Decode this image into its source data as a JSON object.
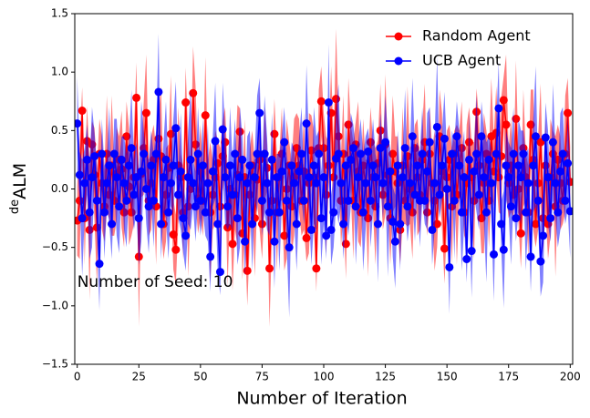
{
  "chart_data": {
    "type": "line",
    "xlabel": "Number of Iteration",
    "ylabel_prefix": "de",
    "ylabel": "ALM",
    "annotation": "Number of Seed: 10",
    "annotation_at": [
      0,
      -0.8
    ],
    "legend": "upper right",
    "xlim": [
      -1,
      201
    ],
    "ylim": [
      -1.5,
      1.5
    ],
    "xticks": [
      0,
      25,
      50,
      75,
      100,
      125,
      150,
      175,
      200
    ],
    "yticks": [
      {
        "value": -1.5,
        "label": "−1.5"
      },
      {
        "value": -1.0,
        "label": "−1.0"
      },
      {
        "value": -0.5,
        "label": "−0.5"
      },
      {
        "value": 0,
        "label": "0.0"
      },
      {
        "value": 0.5,
        "label": "0.5"
      },
      {
        "value": 1.0,
        "label": "1.0"
      },
      {
        "value": 1.5,
        "label": "1.5"
      }
    ],
    "x": [
      0,
      1,
      2,
      3,
      4,
      5,
      6,
      7,
      8,
      9,
      10,
      11,
      12,
      13,
      14,
      15,
      16,
      17,
      18,
      19,
      20,
      21,
      22,
      23,
      24,
      25,
      26,
      27,
      28,
      29,
      30,
      31,
      32,
      33,
      34,
      35,
      36,
      37,
      38,
      39,
      40,
      41,
      42,
      43,
      44,
      45,
      46,
      47,
      48,
      49,
      50,
      51,
      52,
      53,
      54,
      55,
      56,
      57,
      58,
      59,
      60,
      61,
      62,
      63,
      64,
      65,
      66,
      67,
      68,
      69,
      70,
      71,
      72,
      73,
      74,
      75,
      76,
      77,
      78,
      79,
      80,
      81,
      82,
      83,
      84,
      85,
      86,
      87,
      88,
      89,
      90,
      91,
      92,
      93,
      94,
      95,
      96,
      97,
      98,
      99,
      100,
      101,
      102,
      103,
      104,
      105,
      106,
      107,
      108,
      109,
      110,
      111,
      112,
      113,
      114,
      115,
      116,
      117,
      118,
      119,
      120,
      121,
      122,
      123,
      124,
      125,
      126,
      127,
      128,
      129,
      130,
      131,
      132,
      133,
      134,
      135,
      136,
      137,
      138,
      139,
      140,
      141,
      142,
      143,
      144,
      145,
      146,
      147,
      148,
      149,
      150,
      151,
      152,
      153,
      154,
      155,
      156,
      157,
      158,
      159,
      160,
      161,
      162,
      163,
      164,
      165,
      166,
      167,
      168,
      169,
      170,
      171,
      172,
      173,
      174,
      175,
      176,
      177,
      178,
      179,
      180,
      181,
      182,
      183,
      184,
      185,
      186,
      187,
      188,
      189,
      190,
      191,
      192,
      193,
      194,
      195,
      196,
      197,
      198,
      199,
      200
    ],
    "series": [
      {
        "name": "Random Agent",
        "color": "#ff0000",
        "values": [
          -0.27,
          -0.1,
          0.67,
          -0.25,
          0.41,
          -0.35,
          0.38,
          0.12,
          -0.33,
          0.3,
          0.05,
          -0.15,
          0.3,
          -0.05,
          0.2,
          -0.1,
          0.13,
          0.25,
          0.17,
          -0.2,
          0.45,
          0.02,
          -0.2,
          0.1,
          0.78,
          -0.58,
          0.13,
          0.35,
          0.65,
          -0.1,
          0.05,
          0.25,
          -0.15,
          0.43,
          0.28,
          -0.3,
          -0.05,
          0.18,
          0.47,
          -0.39,
          -0.52,
          0.2,
          0.1,
          -0.2,
          0.74,
          -0.15,
          0.0,
          0.82,
          0.38,
          -0.08,
          0.15,
          -0.1,
          0.63,
          0.05,
          -0.2,
          -0.05,
          0.1,
          0.22,
          -0.15,
          0.28,
          0.4,
          -0.33,
          0.0,
          -0.47,
          -0.05,
          0.12,
          0.49,
          -0.38,
          0.1,
          -0.7,
          -0.05,
          0.2,
          -0.25,
          0.08,
          0.25,
          -0.3,
          0.3,
          0.18,
          -0.68,
          -0.1,
          0.47,
          -0.2,
          0.1,
          0.3,
          -0.4,
          0.0,
          0.2,
          -0.15,
          0.1,
          0.35,
          0.2,
          -0.1,
          0.15,
          -0.42,
          0.05,
          0.33,
          0.1,
          -0.68,
          0.35,
          0.75,
          0.35,
          -0.05,
          0.2,
          0.65,
          0.1,
          0.77,
          0.45,
          -0.1,
          0.3,
          -0.47,
          0.55,
          0.25,
          -0.1,
          0.38,
          0.15,
          -0.2,
          0.2,
          0.05,
          -0.25,
          0.4,
          0.1,
          -0.15,
          0.22,
          0.5,
          -0.05,
          0.38,
          0.12,
          -0.25,
          0.3,
          0.15,
          0.05,
          -0.35,
          0.2,
          -0.1,
          0.28,
          0.0,
          -0.2,
          0.35,
          0.1,
          -0.05,
          0.25,
          0.4,
          -0.2,
          0.3,
          0.05,
          -0.1,
          -0.3,
          0.45,
          0.15,
          -0.51,
          0.1,
          0.25,
          -0.15,
          0.3,
          -0.05,
          0.2,
          0.35,
          -0.2,
          0.05,
          0.4,
          0.1,
          -0.1,
          0.66,
          0.2,
          -0.25,
          0.05,
          0.3,
          -0.1,
          0.45,
          0.15,
          0.48,
          0.1,
          0.28,
          0.76,
          0.55,
          0.05,
          0.2,
          -0.05,
          0.6,
          0.0,
          -0.38,
          0.35,
          0.1,
          -0.2,
          0.55,
          0.25,
          -0.3,
          0.05,
          0.4,
          -0.25,
          0.2,
          -0.3,
          0.1,
          0.3,
          -0.15,
          0.25,
          0.05,
          -0.1,
          0.3,
          0.65,
          0.06
        ],
        "errors": [
          0.3,
          0.5,
          0.2,
          0.4,
          0.3,
          0.6,
          0.2,
          0.4,
          0.5,
          0.3,
          0.4,
          0.3,
          0.5,
          0.2,
          0.6,
          0.3,
          0.4,
          0.2,
          0.5,
          0.3,
          0.3,
          0.5,
          0.2,
          0.4,
          0.3,
          0.6,
          0.2,
          0.4,
          0.5,
          0.3,
          0.4,
          0.3,
          0.5,
          0.2,
          0.6,
          0.3,
          0.4,
          0.2,
          0.5,
          0.3,
          0.3,
          0.5,
          0.2,
          0.4,
          0.3,
          0.6,
          0.2,
          0.4,
          0.5,
          0.3,
          0.4,
          0.3,
          0.5,
          0.2,
          0.6,
          0.3,
          0.4,
          0.2,
          0.5,
          0.3,
          0.3,
          0.5,
          0.2,
          0.4,
          0.3,
          0.6,
          0.2,
          0.4,
          0.5,
          0.3,
          0.4,
          0.3,
          0.5,
          0.2,
          0.6,
          0.3,
          0.4,
          0.2,
          0.5,
          0.3,
          0.3,
          0.5,
          0.2,
          0.4,
          0.3,
          0.6,
          0.2,
          0.4,
          0.5,
          0.3,
          0.4,
          0.3,
          0.5,
          0.2,
          0.6,
          0.3,
          0.4,
          0.2,
          0.5,
          0.3,
          0.3,
          0.5,
          0.2,
          0.4,
          0.3,
          0.6,
          0.2,
          0.4,
          0.5,
          0.3,
          0.4,
          0.3,
          0.5,
          0.2,
          0.6,
          0.3,
          0.4,
          0.2,
          0.5,
          0.3,
          0.3,
          0.5,
          0.2,
          0.4,
          0.3,
          0.6,
          0.2,
          0.4,
          0.5,
          0.3,
          0.4,
          0.3,
          0.5,
          0.2,
          0.6,
          0.3,
          0.4,
          0.2,
          0.5,
          0.3,
          0.3,
          0.5,
          0.2,
          0.4,
          0.3,
          0.6,
          0.2,
          0.4,
          0.5,
          0.3,
          0.4,
          0.3,
          0.5,
          0.2,
          0.6,
          0.3,
          0.4,
          0.2,
          0.5,
          0.3,
          0.3,
          0.5,
          0.2,
          0.4,
          0.3,
          0.6,
          0.2,
          0.4,
          0.5,
          0.3,
          0.4,
          0.3,
          0.5,
          0.2,
          0.6,
          0.3,
          0.4,
          0.2,
          0.5,
          0.3,
          0.3,
          0.5,
          0.2,
          0.4,
          0.3,
          0.6,
          0.2,
          0.4,
          0.5,
          0.3,
          0.4,
          0.3,
          0.5,
          0.2,
          0.6,
          0.3,
          0.4,
          0.2,
          0.5,
          0.3,
          0.3
        ]
      },
      {
        "name": "UCB Agent",
        "color": "#0000ff",
        "values": [
          0.56,
          0.12,
          -0.25,
          0.05,
          0.25,
          -0.2,
          0.1,
          0.28,
          -0.1,
          -0.64,
          0.3,
          -0.2,
          0.05,
          0.2,
          -0.3,
          0.3,
          0.1,
          -0.15,
          0.25,
          0.05,
          -0.1,
          0.2,
          0.35,
          -0.05,
          0.1,
          -0.25,
          0.15,
          0.3,
          0.0,
          -0.15,
          0.2,
          -0.1,
          0.3,
          0.83,
          -0.3,
          0.1,
          0.25,
          -0.2,
          0.05,
          0.2,
          0.52,
          -0.05,
          0.15,
          -0.25,
          -0.4,
          0.1,
          0.25,
          0.05,
          -0.15,
          0.3,
          -0.1,
          0.2,
          -0.2,
          0.05,
          -0.58,
          0.15,
          0.41,
          -0.3,
          -0.71,
          0.51,
          0.1,
          -0.15,
          0.2,
          -0.05,
          0.3,
          -0.25,
          0.1,
          0.25,
          -0.45,
          0.05,
          0.2,
          -0.3,
          0.1,
          0.3,
          0.65,
          -0.1,
          0.3,
          0.05,
          -0.2,
          0.25,
          -0.45,
          0.1,
          -0.2,
          0.15,
          0.4,
          -0.1,
          -0.5,
          0.2,
          0.05,
          -0.3,
          0.15,
          0.3,
          -0.1,
          0.56,
          0.1,
          -0.35,
          0.2,
          0.05,
          0.3,
          -0.25,
          0.1,
          -0.4,
          0.74,
          -0.35,
          -0.2,
          0.26,
          0.3,
          0.05,
          -0.3,
          0.2,
          -0.1,
          0.25,
          0.35,
          -0.15,
          0.1,
          0.3,
          -0.2,
          0.05,
          0.32,
          -0.1,
          0.2,
          0.1,
          -0.3,
          0.35,
          0.05,
          0.4,
          -0.15,
          0.15,
          -0.28,
          -0.45,
          0.2,
          -0.3,
          0.1,
          0.35,
          -0.15,
          0.05,
          0.45,
          -0.05,
          0.2,
          -0.1,
          0.3,
          -0.1,
          0.15,
          0.4,
          -0.35,
          0.05,
          0.53,
          -0.05,
          0.2,
          0.43,
          0.0,
          -0.67,
          0.3,
          -0.1,
          0.45,
          0.2,
          -0.2,
          0.1,
          -0.6,
          0.25,
          -0.53,
          0.15,
          0.3,
          -0.05,
          0.45,
          0.1,
          -0.2,
          0.25,
          0.05,
          -0.56,
          0.3,
          0.69,
          -0.3,
          -0.52,
          0.2,
          0.1,
          -0.15,
          0.3,
          -0.25,
          0.2,
          0.1,
          0.3,
          -0.2,
          0.05,
          -0.58,
          0.2,
          0.45,
          -0.1,
          -0.62,
          -0.4,
          0.44,
          0.1,
          -0.25,
          0.4,
          0.05,
          -0.2,
          0.15,
          0.3,
          -0.1,
          0.22,
          -0.19
        ],
        "errors": [
          0.4,
          0.2,
          0.5,
          0.3,
          0.3,
          0.4,
          0.6,
          0.2,
          0.3,
          0.4,
          0.3,
          0.4,
          0.2,
          0.5,
          0.3,
          0.3,
          0.5,
          0.4,
          0.2,
          0.4,
          0.4,
          0.2,
          0.5,
          0.3,
          0.3,
          0.4,
          0.6,
          0.2,
          0.3,
          0.4,
          0.3,
          0.4,
          0.2,
          0.5,
          0.3,
          0.3,
          0.5,
          0.4,
          0.2,
          0.4,
          0.4,
          0.2,
          0.5,
          0.3,
          0.3,
          0.4,
          0.6,
          0.2,
          0.3,
          0.4,
          0.3,
          0.4,
          0.2,
          0.5,
          0.3,
          0.3,
          0.5,
          0.4,
          0.2,
          0.4,
          0.4,
          0.2,
          0.5,
          0.3,
          0.3,
          0.4,
          0.6,
          0.2,
          0.3,
          0.4,
          0.3,
          0.4,
          0.2,
          0.5,
          0.3,
          0.3,
          0.5,
          0.4,
          0.2,
          0.4,
          0.4,
          0.2,
          0.5,
          0.3,
          0.3,
          0.4,
          0.6,
          0.2,
          0.3,
          0.4,
          0.3,
          0.4,
          0.2,
          0.5,
          0.3,
          0.3,
          0.5,
          0.4,
          0.2,
          0.4,
          0.4,
          0.2,
          0.5,
          0.3,
          0.3,
          0.4,
          0.6,
          0.2,
          0.3,
          0.4,
          0.3,
          0.4,
          0.2,
          0.5,
          0.3,
          0.3,
          0.5,
          0.4,
          0.2,
          0.4,
          0.4,
          0.2,
          0.5,
          0.3,
          0.3,
          0.4,
          0.6,
          0.2,
          0.3,
          0.4,
          0.3,
          0.4,
          0.2,
          0.5,
          0.3,
          0.3,
          0.5,
          0.4,
          0.2,
          0.4,
          0.4,
          0.2,
          0.5,
          0.3,
          0.3,
          0.4,
          0.6,
          0.2,
          0.3,
          0.4,
          0.3,
          0.4,
          0.2,
          0.5,
          0.3,
          0.3,
          0.5,
          0.4,
          0.2,
          0.4,
          0.4,
          0.2,
          0.5,
          0.3,
          0.3,
          0.4,
          0.6,
          0.2,
          0.3,
          0.4,
          0.3,
          0.4,
          0.2,
          0.5,
          0.3,
          0.3,
          0.5,
          0.4,
          0.2,
          0.4,
          0.4,
          0.2,
          0.5,
          0.3,
          0.3,
          0.4,
          0.6,
          0.2,
          0.3,
          0.4,
          0.3,
          0.4,
          0.2,
          0.5,
          0.3,
          0.3,
          0.5,
          0.4,
          0.2,
          0.4,
          0.4
        ]
      }
    ]
  }
}
